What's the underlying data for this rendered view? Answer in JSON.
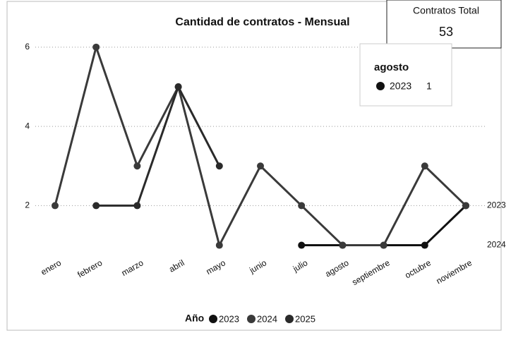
{
  "chart_data": {
    "type": "line",
    "title": "Cantidad de contratos - Mensual",
    "categories": [
      "enero",
      "febrero",
      "marzo",
      "abril",
      "mayo",
      "junio",
      "julio",
      "agosto",
      "septiembre",
      "octubre",
      "noviembre"
    ],
    "series": [
      {
        "name": "2023",
        "color": "#111111",
        "values": [
          null,
          null,
          null,
          null,
          null,
          null,
          1,
          1,
          1,
          1,
          2
        ]
      },
      {
        "name": "2024",
        "color": "#3a3a3a",
        "values": [
          2,
          6,
          3,
          5,
          1,
          3,
          2,
          1,
          1,
          3,
          2
        ]
      },
      {
        "name": "2025",
        "color": "#2a2a2a",
        "values": [
          null,
          2,
          2,
          5,
          3,
          null,
          null,
          null,
          null,
          null,
          null
        ]
      }
    ],
    "ylim": [
      0.6,
      6.3
    ],
    "yticks": [
      2,
      4,
      6
    ],
    "grid": true,
    "legend_title": "Año",
    "legend_position": "bottom"
  },
  "card": {
    "title": "Contratos Total",
    "value": "53"
  },
  "tooltip": {
    "title": "agosto",
    "series": "2023",
    "value": "1"
  }
}
